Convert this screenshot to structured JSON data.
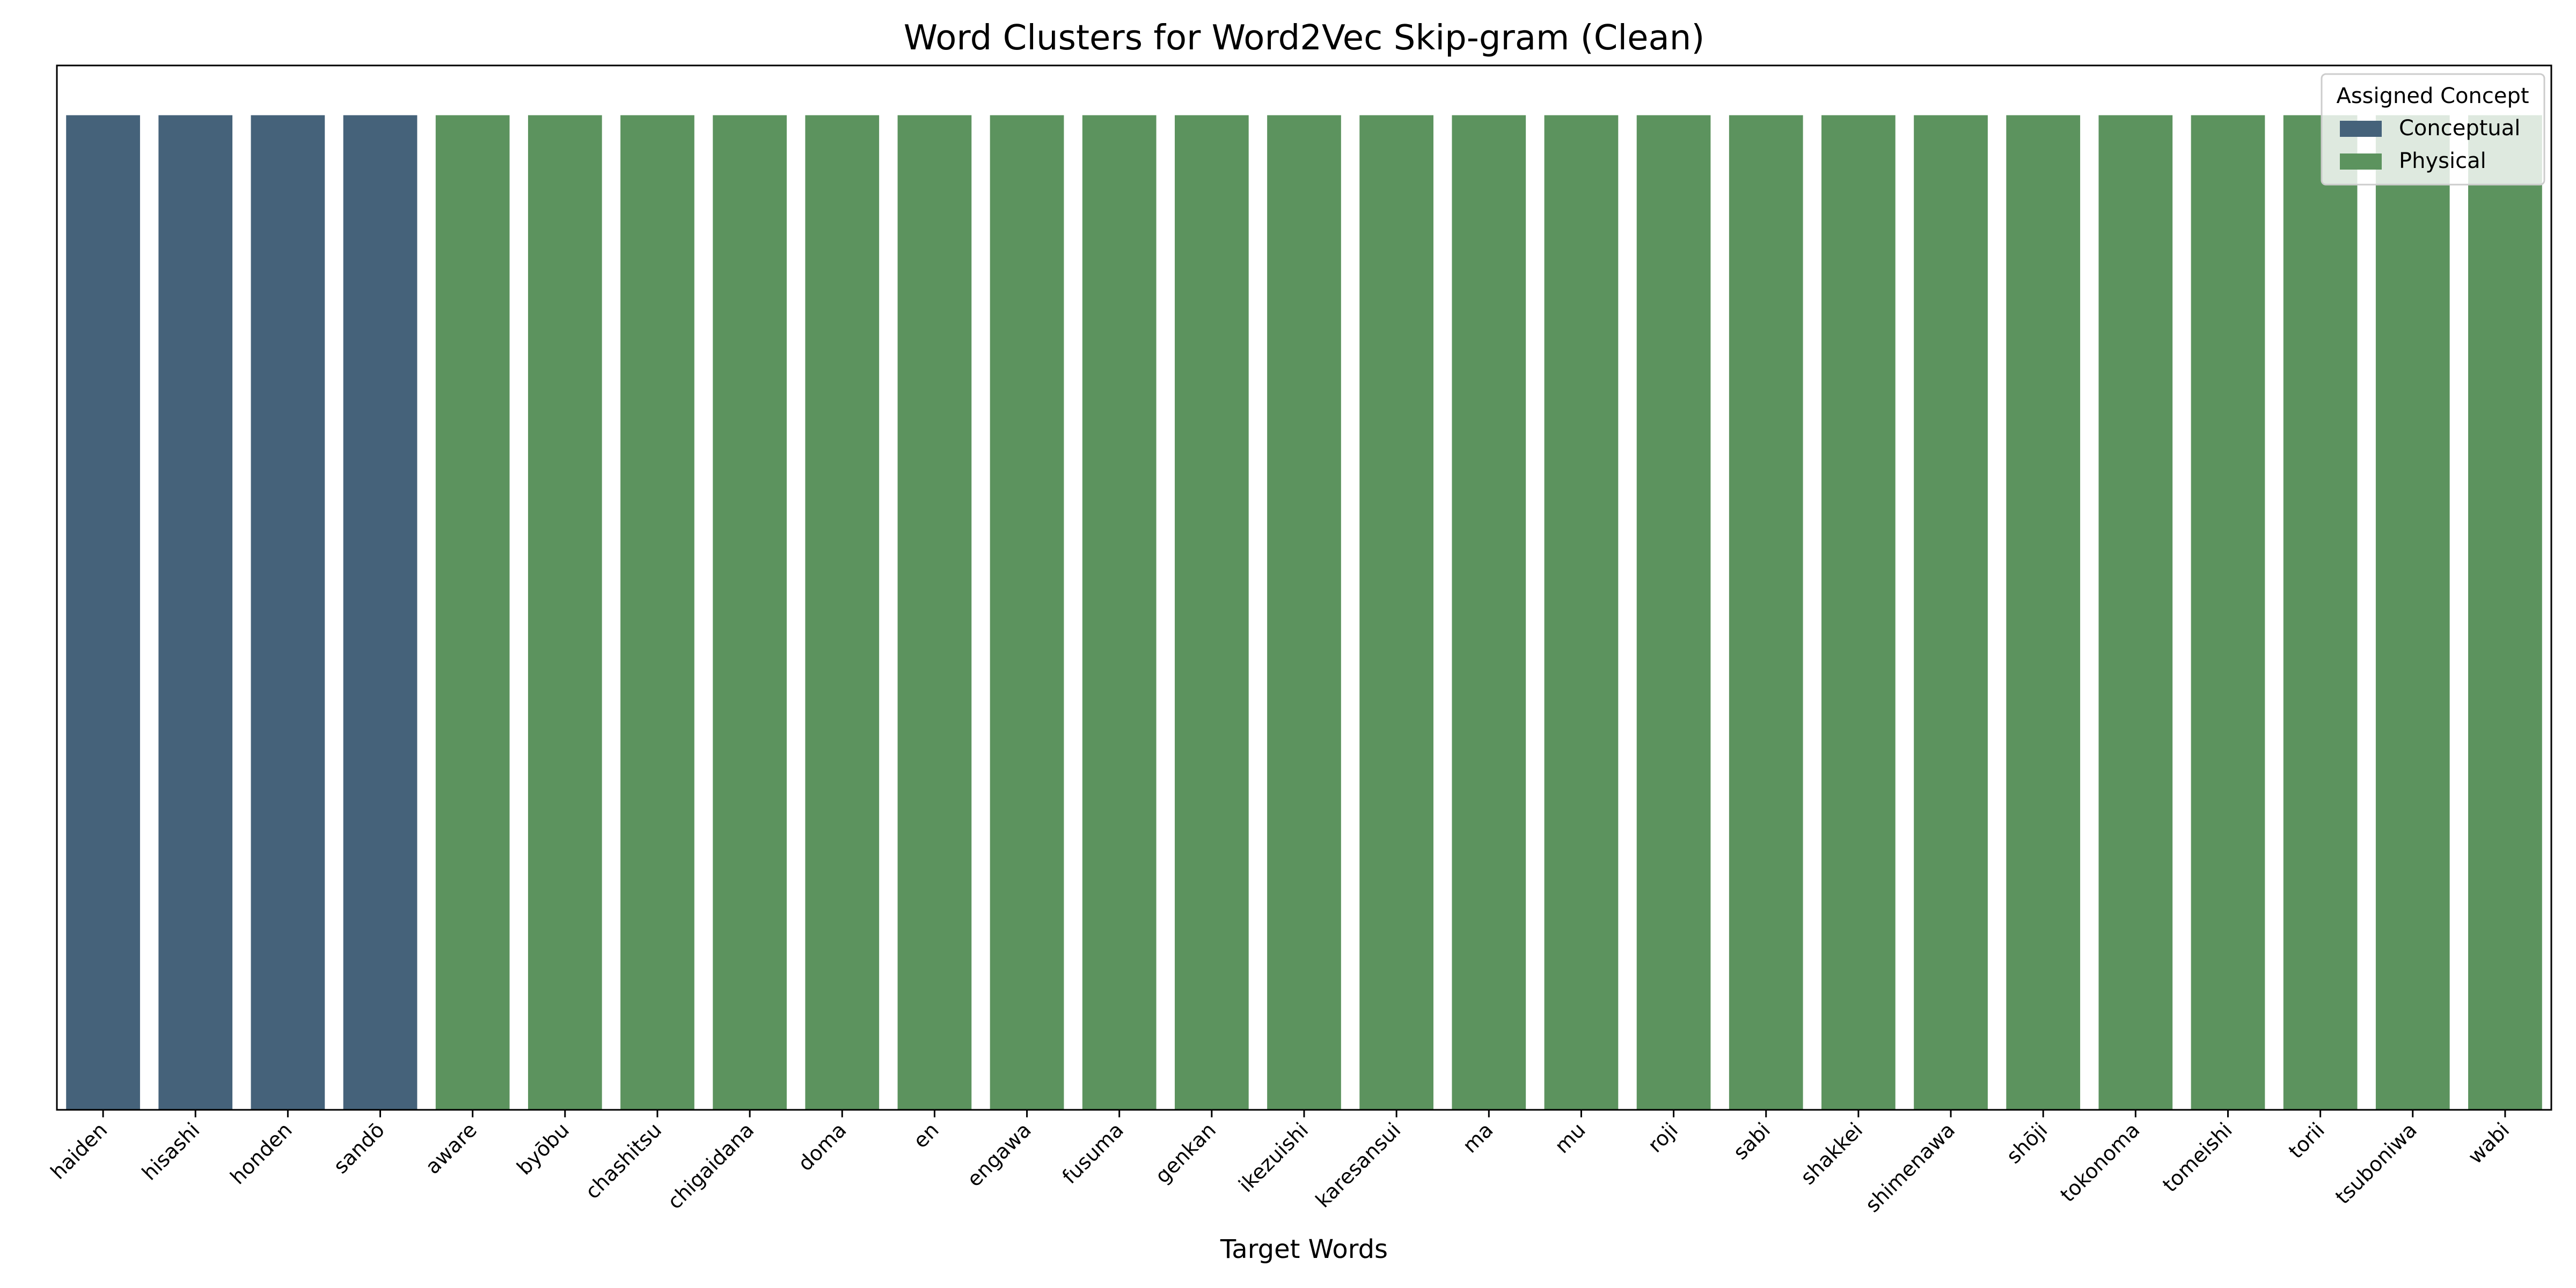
{
  "chart_data": {
    "type": "bar",
    "title": "Word Clusters for Word2Vec Skip-gram (Clean)",
    "xlabel": "Target Words",
    "ylabel": "",
    "ylim": [
      0,
      1.05
    ],
    "grid": false,
    "legend": {
      "title": "Assigned Concept",
      "placement": "top-right",
      "entries": [
        {
          "name": "Conceptual",
          "color": "#45627a"
        },
        {
          "name": "Physical",
          "color": "#5c935e"
        }
      ]
    },
    "categories": [
      "haiden",
      "hisashi",
      "honden",
      "sandō",
      "aware",
      "byōbu",
      "chashitsu",
      "chigaidana",
      "doma",
      "en",
      "engawa",
      "fusuma",
      "genkan",
      "ikezuishi",
      "karesansui",
      "ma",
      "mu",
      "roji",
      "sabi",
      "shakkei",
      "shimenawa",
      "shōji",
      "tokonoma",
      "tomeishi",
      "torii",
      "tsuboniwa",
      "wabi"
    ],
    "values": [
      1,
      1,
      1,
      1,
      1,
      1,
      1,
      1,
      1,
      1,
      1,
      1,
      1,
      1,
      1,
      1,
      1,
      1,
      1,
      1,
      1,
      1,
      1,
      1,
      1,
      1,
      1
    ],
    "concepts": [
      "Conceptual",
      "Conceptual",
      "Conceptual",
      "Conceptual",
      "Physical",
      "Physical",
      "Physical",
      "Physical",
      "Physical",
      "Physical",
      "Physical",
      "Physical",
      "Physical",
      "Physical",
      "Physical",
      "Physical",
      "Physical",
      "Physical",
      "Physical",
      "Physical",
      "Physical",
      "Physical",
      "Physical",
      "Physical",
      "Physical",
      "Physical",
      "Physical"
    ]
  }
}
